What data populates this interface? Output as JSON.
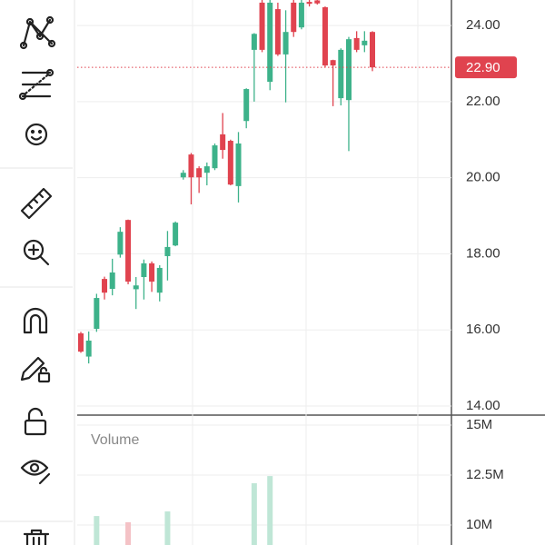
{
  "chart_data": {
    "type": "candlestick",
    "open": [
      15.91,
      15.3,
      16.03,
      17.34,
      17.08,
      17.98,
      18.89,
      17.07,
      17.39,
      17.75,
      16.98,
      17.94,
      18.22,
      20.01,
      20.61,
      20.25,
      20.13,
      20.25,
      21.14,
      20.97,
      19.78,
      21.49,
      23.36,
      24.6,
      22.52,
      24.43,
      23.24,
      24.6,
      23.95,
      24.62,
      24.66,
      24.48,
      23.09,
      22.09,
      22.04,
      23.67,
      23.48,
      23.83
    ],
    "high": [
      15.95,
      15.96,
      16.95,
      17.4,
      17.87,
      18.7,
      18.9,
      17.39,
      17.85,
      17.8,
      17.7,
      18.6,
      18.85,
      20.2,
      20.65,
      20.3,
      20.4,
      20.9,
      21.7,
      21.0,
      21.2,
      22.35,
      23.8,
      24.67,
      24.67,
      24.6,
      24.4,
      24.67,
      24.67,
      24.67,
      24.67,
      24.5,
      23.1,
      23.4,
      23.7,
      23.85,
      23.85,
      23.85
    ],
    "low": [
      15.4,
      15.12,
      15.95,
      16.8,
      16.91,
      17.9,
      17.2,
      16.55,
      16.8,
      17.0,
      16.75,
      17.3,
      18.2,
      19.95,
      19.3,
      19.6,
      19.8,
      20.2,
      20.5,
      19.8,
      19.35,
      21.3,
      22.0,
      23.3,
      22.3,
      23.2,
      21.98,
      23.7,
      23.9,
      24.5,
      24.55,
      22.9,
      21.88,
      21.9,
      20.7,
      23.3,
      23.3,
      22.8
    ],
    "close": [
      15.43,
      15.72,
      16.84,
      16.98,
      17.51,
      18.58,
      17.27,
      17.17,
      17.75,
      17.27,
      17.63,
      18.18,
      18.82,
      20.13,
      20.01,
      20.01,
      20.3,
      20.85,
      20.73,
      19.82,
      20.9,
      22.33,
      23.78,
      23.36,
      24.6,
      23.24,
      23.83,
      23.83,
      24.6,
      24.57,
      24.58,
      22.95,
      22.95,
      23.36,
      23.64,
      23.36,
      23.6,
      22.9
    ],
    "volume": [
      null,
      null,
      10450000,
      null,
      null,
      null,
      10140000,
      null,
      null,
      null,
      null,
      10680000,
      null,
      null,
      null,
      null,
      null,
      null,
      null,
      null,
      null,
      null,
      12090000,
      null,
      12450000,
      null,
      null,
      null,
      null,
      null,
      null,
      null,
      null,
      null,
      null,
      null,
      null,
      null
    ],
    "up_color": "#3db28a",
    "down_color": "#e0434f",
    "volume_up_color": "#bfe6d6",
    "volume_down_color": "#f4c2c6",
    "ylim": [
      13.81,
      24.67
    ],
    "yticks": [
      {
        "value": 14,
        "label": "14.00"
      },
      {
        "value": 16,
        "label": "16.00"
      },
      {
        "value": 18,
        "label": "18.00"
      },
      {
        "value": 20,
        "label": "20.00"
      },
      {
        "value": 22,
        "label": "22.00"
      },
      {
        "value": 24,
        "label": "24.00"
      }
    ],
    "current_price": {
      "value": 22.9,
      "label": "22.90"
    },
    "volume_title": "Volume",
    "y2lim": [
      9000000,
      15500000
    ],
    "y2ticks": [
      {
        "value": 10000000,
        "label": "10M"
      },
      {
        "value": 12500000,
        "label": "12.5M"
      },
      {
        "value": 15000000,
        "label": "15M"
      }
    ],
    "grid": true
  }
}
